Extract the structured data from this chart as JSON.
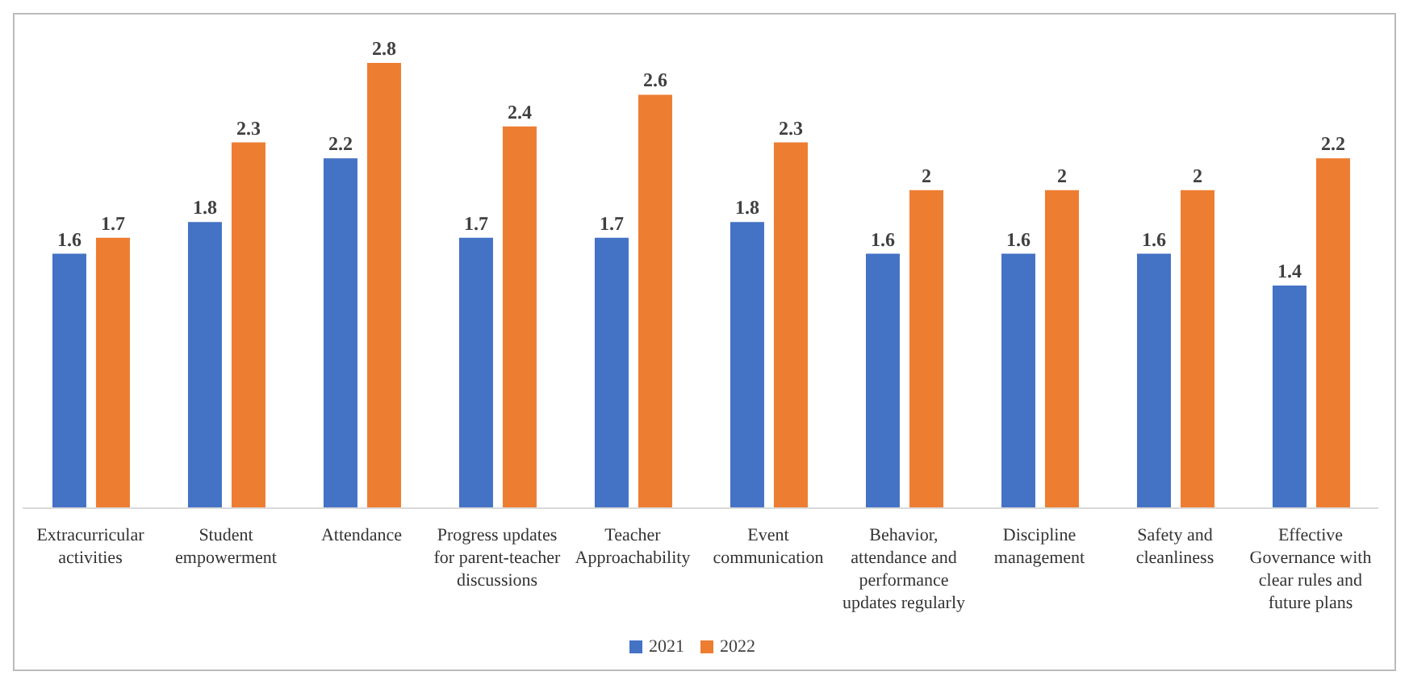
{
  "chart_data": {
    "type": "bar",
    "categories": [
      "Extracurricular activities",
      "Student empowerment",
      "Attendance",
      "Progress updates for parent-teacher discussions",
      "Teacher Approachability",
      "Event communication",
      "Behavior, attendance and performance updates regularly",
      "Discipline management",
      "Safety and cleanliness",
      "Effective Governance with clear rules and future plans"
    ],
    "series": [
      {
        "name": "2021",
        "color": "#4472c4",
        "values": [
          1.6,
          1.8,
          2.2,
          1.7,
          1.7,
          1.8,
          1.6,
          1.6,
          1.6,
          1.4
        ]
      },
      {
        "name": "2022",
        "color": "#ed7d31",
        "values": [
          1.7,
          2.3,
          2.8,
          2.4,
          2.6,
          2.3,
          2,
          2,
          2,
          2.2
        ]
      }
    ],
    "data_labels": true,
    "legend": "bottom"
  }
}
